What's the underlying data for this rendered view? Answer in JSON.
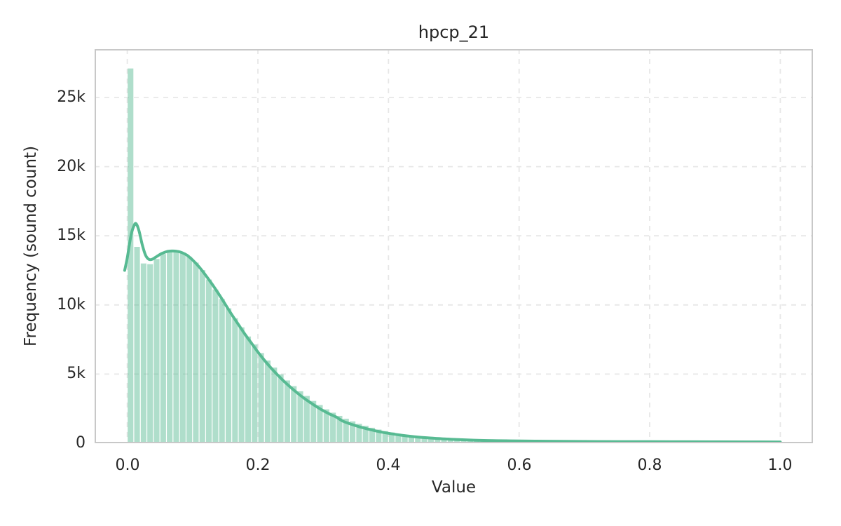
{
  "chart_data": {
    "type": "bar",
    "subtype": "histogram_with_kde",
    "title": "hpcp_21",
    "xlabel": "Value",
    "ylabel": "Frequency (sound count)",
    "xlim": [
      -0.05,
      1.05
    ],
    "ylim": [
      0,
      28500
    ],
    "grid": true,
    "legend": false,
    "xticks": [
      0.0,
      0.2,
      0.4,
      0.6,
      0.8,
      1.0
    ],
    "xtick_labels": [
      "0.0",
      "0.2",
      "0.4",
      "0.6",
      "0.8",
      "1.0"
    ],
    "yticks": [
      0,
      5000,
      10000,
      15000,
      20000,
      25000
    ],
    "ytick_labels": [
      "0",
      "5k",
      "10k",
      "15k",
      "20k",
      "25k"
    ],
    "bin_start": 0.0,
    "bin_width": 0.01,
    "bar_counts": [
      27100,
      14200,
      13000,
      12950,
      13320,
      13680,
      13850,
      13920,
      13780,
      13480,
      13060,
      12520,
      11840,
      11120,
      10430,
      9760,
      9040,
      8380,
      7720,
      7140,
      6520,
      5980,
      5470,
      4980,
      4540,
      4130,
      3760,
      3420,
      3060,
      2760,
      2450,
      2210,
      1980,
      1770,
      1580,
      1400,
      1260,
      1120,
      990,
      880,
      780,
      690,
      610,
      540,
      475,
      420,
      370,
      325,
      290,
      255,
      225,
      200,
      175,
      155,
      140,
      125,
      110,
      100,
      90,
      82,
      76,
      70,
      65,
      60,
      57,
      54,
      51,
      49,
      47,
      45,
      43,
      41,
      40,
      38,
      37,
      36,
      35,
      34,
      33,
      32,
      31,
      30,
      30,
      29,
      28,
      28,
      27,
      27,
      26,
      26,
      25,
      25,
      24,
      24,
      23,
      23,
      22,
      22,
      21,
      21
    ],
    "kde_points": {
      "x": [
        -0.004,
        0.0,
        0.006,
        0.011,
        0.014,
        0.018,
        0.023,
        0.028,
        0.033,
        0.038,
        0.045,
        0.052,
        0.06,
        0.068,
        0.076,
        0.084,
        0.092,
        0.1,
        0.11,
        0.12,
        0.13,
        0.14,
        0.15,
        0.16,
        0.17,
        0.18,
        0.19,
        0.2,
        0.21,
        0.22,
        0.23,
        0.24,
        0.25,
        0.26,
        0.27,
        0.28,
        0.29,
        0.3,
        0.31,
        0.32,
        0.33,
        0.34,
        0.35,
        0.36,
        0.37,
        0.38,
        0.39,
        0.4,
        0.42,
        0.44,
        0.46,
        0.48,
        0.5,
        0.52,
        0.54,
        0.56,
        0.58,
        0.6,
        0.64,
        0.68,
        0.72,
        0.76,
        0.8,
        0.85,
        0.9,
        0.95,
        1.0
      ],
      "y": [
        12500,
        13400,
        15100,
        15800,
        15850,
        15350,
        14350,
        13600,
        13300,
        13300,
        13500,
        13700,
        13850,
        13900,
        13880,
        13780,
        13580,
        13250,
        12750,
        12150,
        11500,
        10800,
        10050,
        9300,
        8600,
        7900,
        7250,
        6600,
        6000,
        5450,
        4950,
        4480,
        4050,
        3650,
        3280,
        2950,
        2640,
        2360,
        2110,
        1890,
        1600,
        1420,
        1270,
        1130,
        1010,
        900,
        800,
        720,
        580,
        470,
        395,
        330,
        280,
        240,
        210,
        190,
        175,
        160,
        145,
        132,
        122,
        115,
        110,
        104,
        100,
        96,
        93
      ]
    },
    "colors": {
      "kde_line": "#57ba92",
      "bar_fill": "#57ba92",
      "bar_fill_opacity": 0.48,
      "bar_gap": "#ffffff",
      "grid": "#e7e7e7",
      "spine": "#c8c8c8",
      "text": "#262626",
      "background": "#ffffff"
    }
  }
}
